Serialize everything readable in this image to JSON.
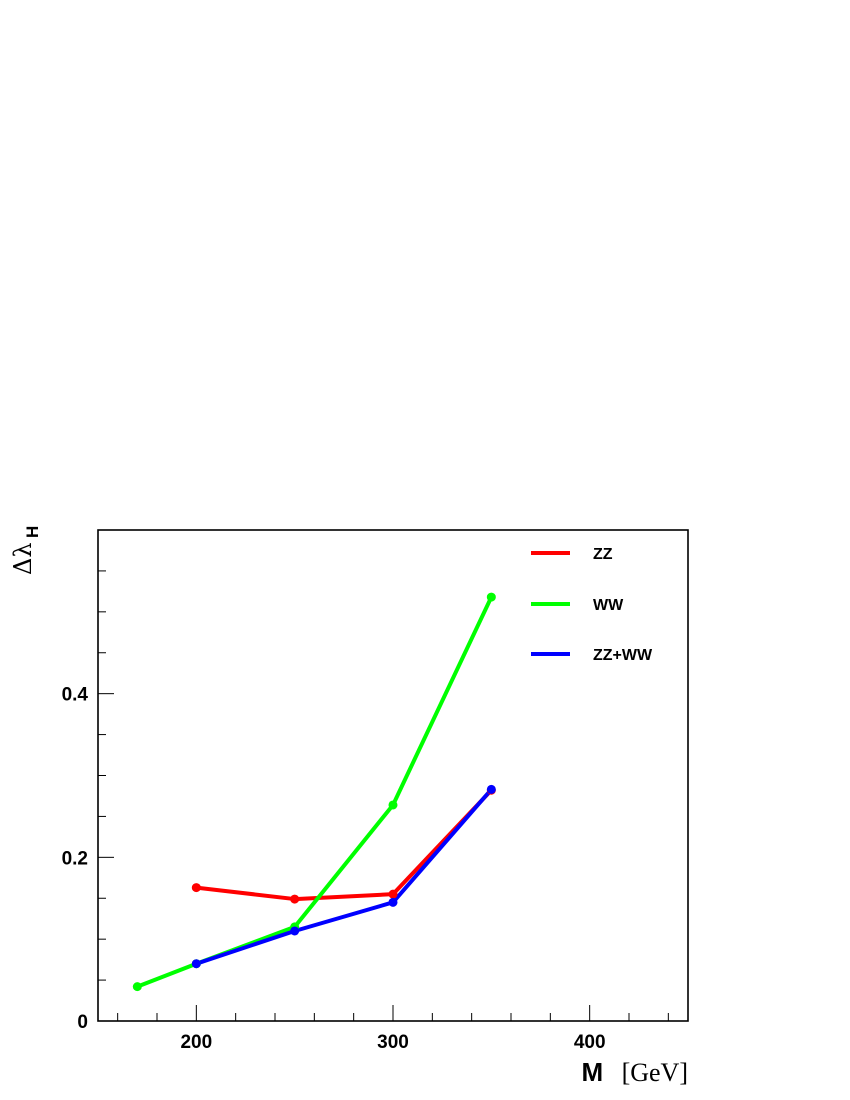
{
  "chart_data": {
    "type": "line",
    "xlabel": "M",
    "xlabel_unit": "[GeV]",
    "ylabel": "Δλ",
    "ylabel_sub": "H",
    "xlim": [
      150,
      450
    ],
    "ylim": [
      0,
      0.6
    ],
    "x_ticks": [
      200,
      300,
      400
    ],
    "x_tick_labels": [
      "200",
      "300",
      "400"
    ],
    "y_ticks": [
      0,
      0.2,
      0.4
    ],
    "y_tick_labels": [
      "0",
      "0.2",
      "0.4"
    ],
    "grid": false,
    "legend_position": "top-right",
    "series": [
      {
        "name": "ZZ",
        "color": "#ff0000",
        "x": [
          200,
          250,
          300,
          350
        ],
        "y": [
          0.163,
          0.149,
          0.155,
          0.282
        ]
      },
      {
        "name": "WW",
        "color": "#00ff00",
        "x": [
          170,
          200,
          250,
          300,
          350
        ],
        "y": [
          0.042,
          0.07,
          0.115,
          0.264,
          0.518
        ]
      },
      {
        "name": "ZZ+WW",
        "color": "#0000ff",
        "x": [
          200,
          250,
          300,
          350
        ],
        "y": [
          0.07,
          0.11,
          0.145,
          0.283
        ]
      }
    ]
  }
}
